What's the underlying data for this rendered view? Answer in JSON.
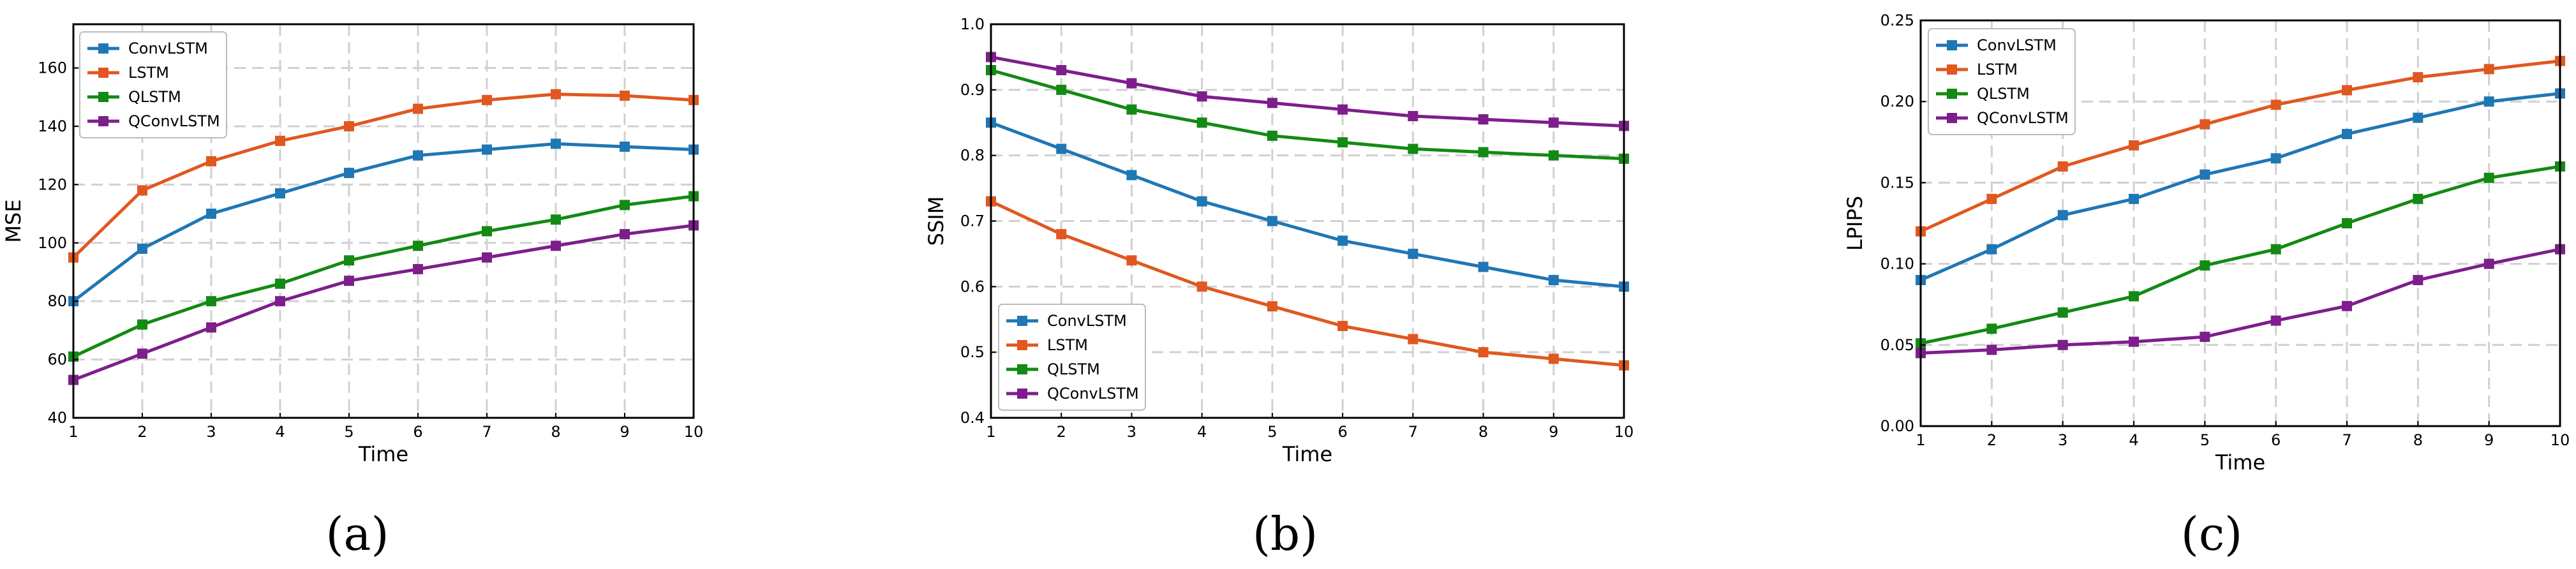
{
  "figure": {
    "captions": [
      "(a)",
      "(b)",
      "(c)"
    ]
  },
  "colors": {
    "ConvLSTM": "#1f77b4",
    "LSTM": "#e0581f",
    "QLSTM": "#138a13",
    "QConvLSTM": "#7e1e8c",
    "grid": "#d0d0d0",
    "axis": "#000000"
  },
  "chart_data": [
    {
      "type": "line",
      "panel": "(a)",
      "title": "",
      "xlabel": "Time",
      "ylabel": "MSE",
      "x": [
        1,
        2,
        3,
        4,
        5,
        6,
        7,
        8,
        9,
        10
      ],
      "xlim": [
        1,
        10
      ],
      "ylim": [
        40,
        175
      ],
      "yticks": [
        40,
        60,
        80,
        100,
        120,
        140,
        160
      ],
      "ytick_labels": [
        "40",
        "60",
        "80",
        "100",
        "120",
        "140",
        "160"
      ],
      "legend_position": "top-left",
      "grid": true,
      "series": [
        {
          "name": "ConvLSTM",
          "values": [
            80,
            98,
            110,
            117,
            124,
            130,
            132,
            134,
            133,
            132
          ]
        },
        {
          "name": "LSTM",
          "values": [
            95,
            118,
            128,
            135,
            140,
            146,
            149,
            151,
            150.5,
            149
          ]
        },
        {
          "name": "QLSTM",
          "values": [
            61,
            72,
            80,
            86,
            94,
            99,
            104,
            108,
            113,
            116
          ]
        },
        {
          "name": "QConvLSTM",
          "values": [
            53,
            62,
            71,
            80,
            87,
            91,
            95,
            99,
            103,
            106
          ]
        }
      ]
    },
    {
      "type": "line",
      "panel": "(b)",
      "title": "",
      "xlabel": "Time",
      "ylabel": "SSIM",
      "x": [
        1,
        2,
        3,
        4,
        5,
        6,
        7,
        8,
        9,
        10
      ],
      "xlim": [
        1,
        10
      ],
      "ylim": [
        0.4,
        1.0
      ],
      "yticks": [
        0.4,
        0.5,
        0.6,
        0.7,
        0.8,
        0.9,
        1.0
      ],
      "ytick_labels": [
        "0.4",
        "0.5",
        "0.6",
        "0.7",
        "0.8",
        "0.9",
        "1.0"
      ],
      "legend_position": "bottom-left",
      "grid": true,
      "series": [
        {
          "name": "ConvLSTM",
          "values": [
            0.85,
            0.81,
            0.77,
            0.73,
            0.7,
            0.67,
            0.65,
            0.63,
            0.61,
            0.6
          ]
        },
        {
          "name": "LSTM",
          "values": [
            0.73,
            0.68,
            0.64,
            0.6,
            0.57,
            0.54,
            0.52,
            0.5,
            0.49,
            0.48
          ]
        },
        {
          "name": "QLSTM",
          "values": [
            0.93,
            0.9,
            0.87,
            0.85,
            0.83,
            0.82,
            0.81,
            0.805,
            0.8,
            0.795
          ]
        },
        {
          "name": "QConvLSTM",
          "values": [
            0.95,
            0.93,
            0.91,
            0.89,
            0.88,
            0.87,
            0.86,
            0.855,
            0.85,
            0.845
          ]
        }
      ]
    },
    {
      "type": "line",
      "panel": "(c)",
      "title": "",
      "xlabel": "Time",
      "ylabel": "LPIPS",
      "x": [
        1,
        2,
        3,
        4,
        5,
        6,
        7,
        8,
        9,
        10
      ],
      "xlim": [
        1,
        10
      ],
      "ylim": [
        0.0,
        0.25
      ],
      "yticks": [
        0.0,
        0.05,
        0.1,
        0.15,
        0.2,
        0.25
      ],
      "ytick_labels": [
        "0.00",
        "0.05",
        "0.10",
        "0.15",
        "0.20",
        "0.25"
      ],
      "legend_position": "top-left",
      "grid": true,
      "series": [
        {
          "name": "ConvLSTM",
          "values": [
            0.09,
            0.109,
            0.13,
            0.14,
            0.155,
            0.165,
            0.18,
            0.19,
            0.2,
            0.205
          ]
        },
        {
          "name": "LSTM",
          "values": [
            0.12,
            0.14,
            0.16,
            0.173,
            0.186,
            0.198,
            0.207,
            0.215,
            0.22,
            0.225
          ]
        },
        {
          "name": "QLSTM",
          "values": [
            0.051,
            0.06,
            0.07,
            0.08,
            0.099,
            0.109,
            0.125,
            0.14,
            0.153,
            0.16
          ]
        },
        {
          "name": "QConvLSTM",
          "values": [
            0.045,
            0.047,
            0.05,
            0.052,
            0.055,
            0.065,
            0.074,
            0.09,
            0.1,
            0.109
          ]
        }
      ]
    }
  ]
}
